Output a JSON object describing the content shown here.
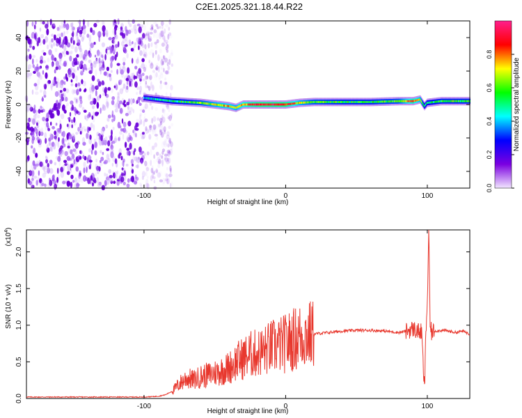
{
  "title": "C2E1.2025.321.18.44.R22",
  "colors": {
    "snr_line": "#e8382e",
    "axis": "#000000",
    "background": "#ffffff"
  },
  "chart_data": [
    {
      "type": "heatmap",
      "name": "spectrogram",
      "xlabel": "Height of straight line (km)",
      "ylabel": "Frequency (Hz)",
      "xlim": [
        -183,
        130
      ],
      "ylim": [
        -50,
        50
      ],
      "xticks": [
        -100,
        0,
        100
      ],
      "xtick_labels": [
        "-100",
        "0",
        "100"
      ],
      "yticks": [
        -40,
        -20,
        0,
        20,
        40
      ],
      "ytick_labels": [
        "-40",
        "-20",
        "0",
        "20",
        "40"
      ],
      "colorbar": {
        "label": "Normalized spectral amplitude",
        "range": [
          0,
          1
        ],
        "ticks": [
          0.0,
          0.2,
          0.4,
          0.6,
          0.8
        ],
        "tick_labels": [
          "0.0",
          "0.2",
          "0.4",
          "0.6",
          "0.8"
        ],
        "colormap": [
          "#f2e6ff",
          "#7b00e0",
          "#0000ff",
          "#00ffff",
          "#00ff00",
          "#ffff00",
          "#ff0000",
          "#ff1f8c"
        ]
      },
      "ridge": {
        "description_free": true,
        "x": [
          -100,
          -90,
          -80,
          -70,
          -60,
          -50,
          -40,
          -35,
          -30,
          -20,
          -10,
          0,
          10,
          20,
          40,
          60,
          80,
          90,
          95,
          98,
          100,
          110,
          130
        ],
        "freq": [
          4,
          3,
          2,
          1.5,
          1,
          0,
          -1,
          -2,
          0,
          0,
          0,
          0,
          1,
          1.5,
          1.5,
          1.5,
          2,
          2,
          3,
          -1,
          1,
          2,
          2
        ],
        "amplitude": [
          0.4,
          0.45,
          0.5,
          0.55,
          0.6,
          0.7,
          0.75,
          0.7,
          0.8,
          0.9,
          0.9,
          0.9,
          0.7,
          0.6,
          0.55,
          0.55,
          0.6,
          0.85,
          0.7,
          0.5,
          0.5,
          0.55,
          0.55
        ]
      },
      "noise_region_x": [
        -183,
        -85
      ]
    },
    {
      "type": "line",
      "name": "snr",
      "xlabel": "Height of straight line (km)",
      "ylabel": "SNR (10 * v/v)",
      "scale_label": "(x10",
      "scale_exponent": "4",
      "scale_close": ")",
      "xlim": [
        -183,
        130
      ],
      "ylim": [
        0,
        2.3
      ],
      "xticks": [
        -100,
        0,
        100
      ],
      "xtick_labels": [
        "-100",
        "0",
        "100"
      ],
      "yticks": [
        0.0,
        0.5,
        1.0,
        1.5,
        2.0
      ],
      "ytick_labels": [
        "0.0",
        "0.5",
        "1.0",
        "1.5",
        "2.0"
      ],
      "series": [
        {
          "name": "SNR",
          "x": [
            -183,
            -150,
            -120,
            -100,
            -90,
            -85,
            -80,
            -75,
            -70,
            -65,
            -60,
            -55,
            -50,
            -45,
            -40,
            -35,
            -30,
            -25,
            -20,
            -15,
            -10,
            -5,
            0,
            5,
            10,
            20,
            30,
            40,
            50,
            60,
            70,
            75,
            80,
            85,
            90,
            93,
            96,
            97,
            98,
            99,
            100,
            101,
            102,
            103,
            105,
            110,
            115,
            120,
            125,
            130
          ],
          "y": [
            0.02,
            0.02,
            0.02,
            0.02,
            0.03,
            0.05,
            0.1,
            0.2,
            0.28,
            0.25,
            0.3,
            0.32,
            0.35,
            0.38,
            0.42,
            0.5,
            0.55,
            0.6,
            0.62,
            0.65,
            0.7,
            0.72,
            0.75,
            0.8,
            0.85,
            0.88,
            0.9,
            0.92,
            0.93,
            0.93,
            0.92,
            0.91,
            0.9,
            0.92,
            0.95,
            0.92,
            0.9,
            0.5,
            0.1,
            0.9,
            1.3,
            2.3,
            1.0,
            0.9,
            0.92,
            0.93,
            0.92,
            0.9,
            0.92,
            0.88
          ]
        }
      ]
    }
  ]
}
